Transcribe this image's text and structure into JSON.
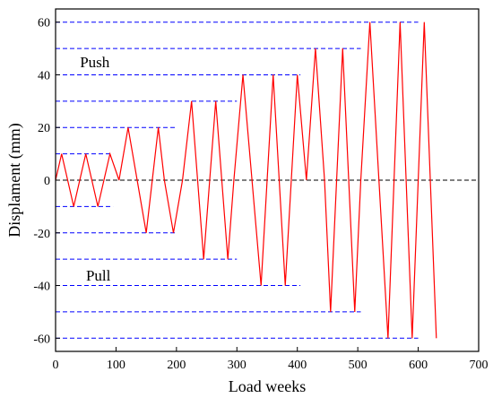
{
  "chart_data": {
    "type": "line",
    "title": "",
    "xlabel": "Load weeks",
    "ylabel": "Displament (mm)",
    "xlim": [
      0,
      700
    ],
    "ylim": [
      -65,
      65
    ],
    "x_ticks": [
      0,
      100,
      200,
      300,
      400,
      500,
      600,
      700
    ],
    "y_ticks": [
      -60,
      -40,
      -20,
      0,
      20,
      40,
      60
    ],
    "grid": false,
    "legend": null,
    "colors": {
      "series": "#ff0000",
      "envelope": "#0000ff",
      "zero_line": "#000000",
      "axis": "#000000"
    },
    "series": [
      {
        "x": [
          0,
          10,
          20,
          30,
          40,
          50,
          60,
          70,
          80,
          90,
          105,
          120,
          135,
          150,
          160,
          170,
          180,
          195,
          210,
          225,
          235,
          245,
          255,
          265,
          275,
          285,
          295,
          310,
          325,
          340,
          350,
          360,
          370,
          380,
          390,
          400,
          415,
          430,
          445,
          455,
          465,
          475,
          485,
          495,
          505,
          520,
          535,
          550,
          560,
          570,
          580,
          590,
          600,
          610,
          620,
          630
        ],
        "y": [
          0,
          10,
          0,
          -10,
          0,
          10,
          0,
          -10,
          0,
          10,
          0,
          20,
          0,
          -20,
          0,
          20,
          0,
          -20,
          0,
          30,
          0,
          -30,
          0,
          30,
          0,
          -30,
          0,
          40,
          0,
          -40,
          0,
          40,
          0,
          -40,
          0,
          40,
          0,
          50,
          0,
          -50,
          0,
          50,
          0,
          -50,
          0,
          60,
          0,
          -60,
          0,
          60,
          0,
          -60,
          0,
          60,
          0,
          -60
        ]
      }
    ],
    "envelope_lines": [
      {
        "y": 10,
        "x": [
          0,
          95
        ]
      },
      {
        "y": -10,
        "x": [
          0,
          95
        ]
      },
      {
        "y": 20,
        "x": [
          0,
          200
        ]
      },
      {
        "y": -20,
        "x": [
          0,
          200
        ]
      },
      {
        "y": 30,
        "x": [
          0,
          300
        ]
      },
      {
        "y": -30,
        "x": [
          0,
          300
        ]
      },
      {
        "y": 40,
        "x": [
          0,
          405
        ]
      },
      {
        "y": -40,
        "x": [
          0,
          405
        ]
      },
      {
        "y": 50,
        "x": [
          0,
          505
        ]
      },
      {
        "y": -50,
        "x": [
          0,
          505
        ]
      },
      {
        "y": 60,
        "x": [
          0,
          600
        ]
      },
      {
        "y": -60,
        "x": [
          0,
          600
        ]
      }
    ],
    "zero_line": {
      "y": 0,
      "x": [
        0,
        700
      ]
    },
    "annotations": [
      {
        "text": "Push",
        "x": 70,
        "y": 45
      },
      {
        "text": "Pull",
        "x": 80,
        "y": -36
      }
    ]
  }
}
